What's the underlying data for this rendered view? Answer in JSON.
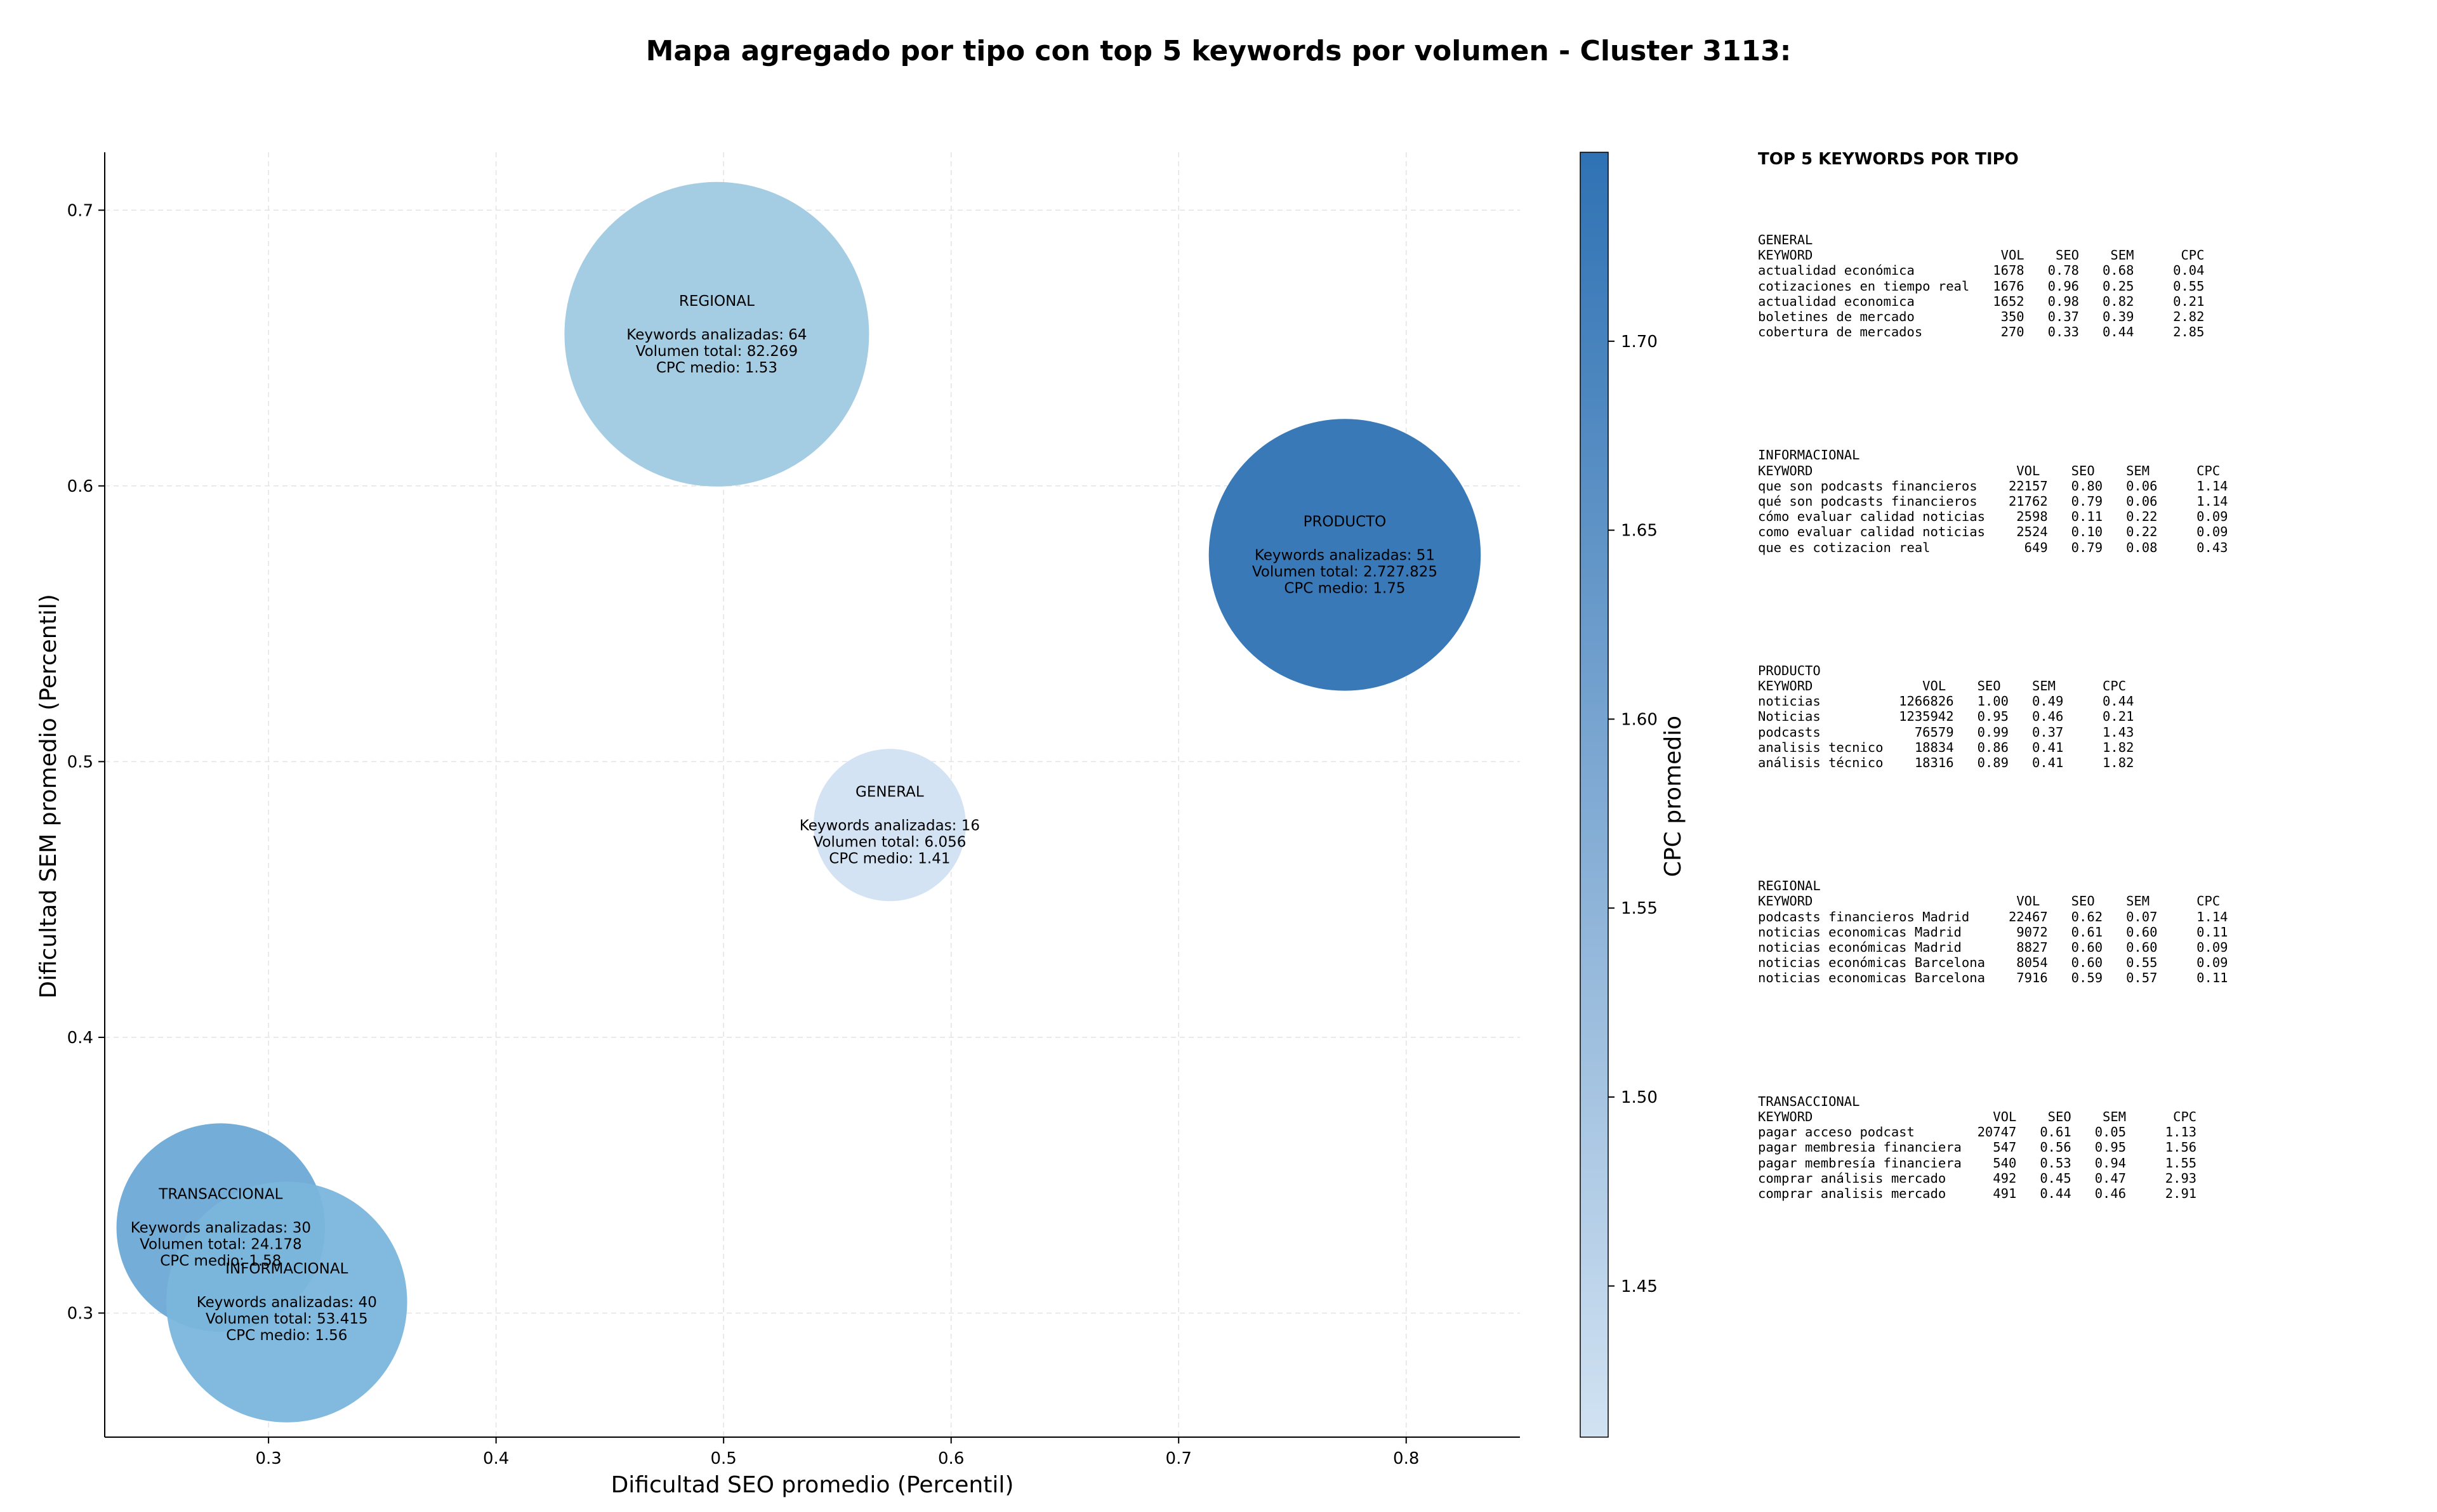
{
  "chart_data": {
    "type": "scatter",
    "title": "Mapa agregado por tipo con top 5 keywords por volumen - Cluster 3113:",
    "xlabel": "Dificultad SEO promedio (Percentil)",
    "ylabel": "Dificultad SEM promedio (Percentil)",
    "xlim": [
      0.228,
      0.85
    ],
    "ylim": [
      0.255,
      0.721
    ],
    "x_ticks": [
      0.3,
      0.4,
      0.5,
      0.6,
      0.7,
      0.8
    ],
    "y_ticks": [
      0.3,
      0.4,
      0.5,
      0.6,
      0.7
    ],
    "x_tick_labels": [
      "0.3",
      "0.4",
      "0.5",
      "0.6",
      "0.7",
      "0.8"
    ],
    "y_tick_labels": [
      "0.3",
      "0.4",
      "0.5",
      "0.6",
      "0.7"
    ],
    "grid": true,
    "bubble_size": "radius scales with number of keywords analyzed",
    "colorbar": {
      "label": "CPC promedio",
      "range": [
        1.41,
        1.75
      ],
      "colors": [
        "#d1e2f2",
        "#2f72b4"
      ],
      "ticks": [
        1.45,
        1.5,
        1.55,
        1.6,
        1.65,
        1.7
      ],
      "tick_labels": [
        "1.45",
        "1.50",
        "1.55",
        "1.60",
        "1.65",
        "1.70"
      ]
    },
    "points": [
      {
        "name": "REGIONAL",
        "x": 0.497,
        "y": 0.655,
        "keywords": 64,
        "volume": 82269,
        "cpc": 1.53,
        "color": "#9fc9e0",
        "lines": [
          "Keywords analizadas: 64",
          "Volumen total: 82.269",
          "CPC medio: 1.53"
        ]
      },
      {
        "name": "PRODUCTO",
        "x": 0.773,
        "y": 0.575,
        "keywords": 51,
        "volume": 2727825,
        "cpc": 1.75,
        "color": "#2f72b4",
        "lines": [
          "Keywords analizadas: 51",
          "Volumen total: 2.727.825",
          "CPC medio: 1.75"
        ]
      },
      {
        "name": "GENERAL",
        "x": 0.573,
        "y": 0.477,
        "keywords": 16,
        "volume": 6056,
        "cpc": 1.41,
        "color": "#d1e2f2",
        "lines": [
          "Keywords analizadas: 16",
          "Volumen total: 6.056",
          "CPC medio: 1.41"
        ]
      },
      {
        "name": "TRANSACCIONAL",
        "x": 0.279,
        "y": 0.331,
        "keywords": 30,
        "volume": 24178,
        "cpc": 1.58,
        "color": "#6daad6",
        "lines": [
          "Keywords analizadas: 30",
          "Volumen total: 24.178",
          "CPC medio: 1.58"
        ]
      },
      {
        "name": "INFORMACIONAL",
        "x": 0.308,
        "y": 0.304,
        "keywords": 40,
        "volume": 53415,
        "cpc": 1.56,
        "color": "#7ab6dc",
        "lines": [
          "Keywords analizadas: 40",
          "Volumen total: 53.415",
          "CPC medio: 1.56"
        ]
      }
    ]
  },
  "side_panel": {
    "title": "TOP 5 KEYWORDS POR TIPO",
    "blocks": [
      {
        "name": "GENERAL",
        "lines": [
          "GENERAL",
          "KEYWORD                        VOL    SEO    SEM      CPC",
          "actualidad económica          1678   0.78   0.68     0.04",
          "cotizaciones en tiempo real   1676   0.96   0.25     0.55",
          "actualidad economica          1652   0.98   0.82     0.21",
          "boletines de mercado           350   0.37   0.39     2.82",
          "cobertura de mercados          270   0.33   0.44     2.85"
        ]
      },
      {
        "name": "INFORMACIONAL",
        "lines": [
          "INFORMACIONAL",
          "KEYWORD                          VOL    SEO    SEM      CPC",
          "que son podcasts financieros    22157   0.80   0.06     1.14",
          "qué son podcasts financieros    21762   0.79   0.06     1.14",
          "cómo evaluar calidad noticias    2598   0.11   0.22     0.09",
          "como evaluar calidad noticias    2524   0.10   0.22     0.09",
          "que es cotizacion real            649   0.79   0.08     0.43"
        ]
      },
      {
        "name": "PRODUCTO",
        "lines": [
          "PRODUCTO",
          "KEYWORD              VOL    SEO    SEM      CPC",
          "noticias          1266826   1.00   0.49     0.44",
          "Noticias          1235942   0.95   0.46     0.21",
          "podcasts            76579   0.99   0.37     1.43",
          "analisis tecnico    18834   0.86   0.41     1.82",
          "análisis técnico    18316   0.89   0.41     1.82"
        ]
      },
      {
        "name": "REGIONAL",
        "lines": [
          "REGIONAL",
          "KEYWORD                          VOL    SEO    SEM      CPC",
          "podcasts financieros Madrid     22467   0.62   0.07     1.14",
          "noticias economicas Madrid       9072   0.61   0.60     0.11",
          "noticias económicas Madrid       8827   0.60   0.60     0.09",
          "noticias económicas Barcelona    8054   0.60   0.55     0.09",
          "noticias economicas Barcelona    7916   0.59   0.57     0.11"
        ]
      },
      {
        "name": "TRANSACCIONAL",
        "lines": [
          "TRANSACCIONAL",
          "KEYWORD                       VOL    SEO    SEM      CPC",
          "pagar acceso podcast        20747   0.61   0.05     1.13",
          "pagar membresia financiera    547   0.56   0.95     1.56",
          "pagar membresía financiera    540   0.53   0.94     1.55",
          "comprar análisis mercado      492   0.45   0.47     2.93",
          "comprar analisis mercado      491   0.44   0.46     2.91"
        ]
      }
    ]
  }
}
